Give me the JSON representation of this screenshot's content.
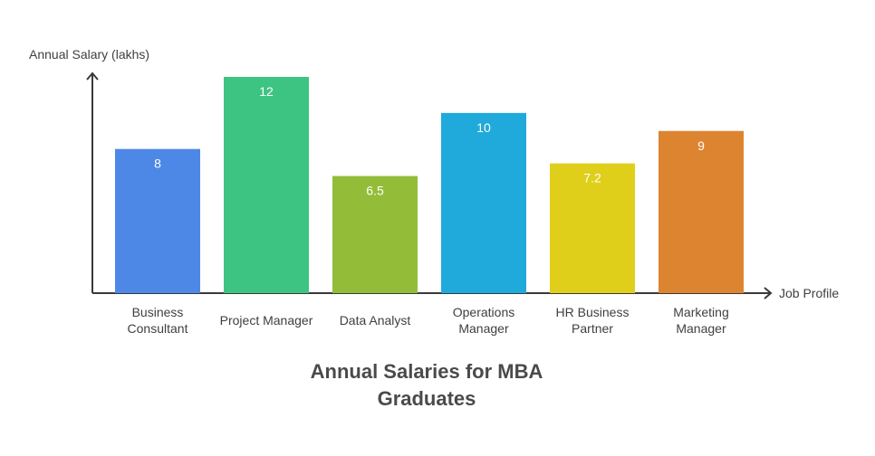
{
  "chart_data": {
    "type": "bar",
    "title_lines": [
      "Annual Salaries for MBA",
      "Graduates"
    ],
    "xlabel": "Job Profile",
    "ylabel": "Annual Salary (lakhs)",
    "categories": [
      [
        "Business",
        "Consultant"
      ],
      [
        "Project Manager"
      ],
      [
        "Data Analyst"
      ],
      [
        "Operations",
        "Manager"
      ],
      [
        "HR Business",
        "Partner"
      ],
      [
        "Marketing",
        "Manager"
      ]
    ],
    "values": [
      8,
      12,
      6.5,
      10,
      7.2,
      9
    ],
    "value_labels": [
      "8",
      "12",
      "6.5",
      "10",
      "7.2",
      "9"
    ],
    "colors": [
      "#4d88e6",
      "#3ec482",
      "#93bd38",
      "#20aadb",
      "#dfcf1a",
      "#dd8430"
    ],
    "ylim": [
      0,
      12
    ],
    "grid": false,
    "legend": "none"
  },
  "style": {
    "axis_color": "#3a3a3a",
    "text_color": "#3f3f3f",
    "title_color": "#4a4a4a",
    "value_label_color": "#ffffff"
  }
}
